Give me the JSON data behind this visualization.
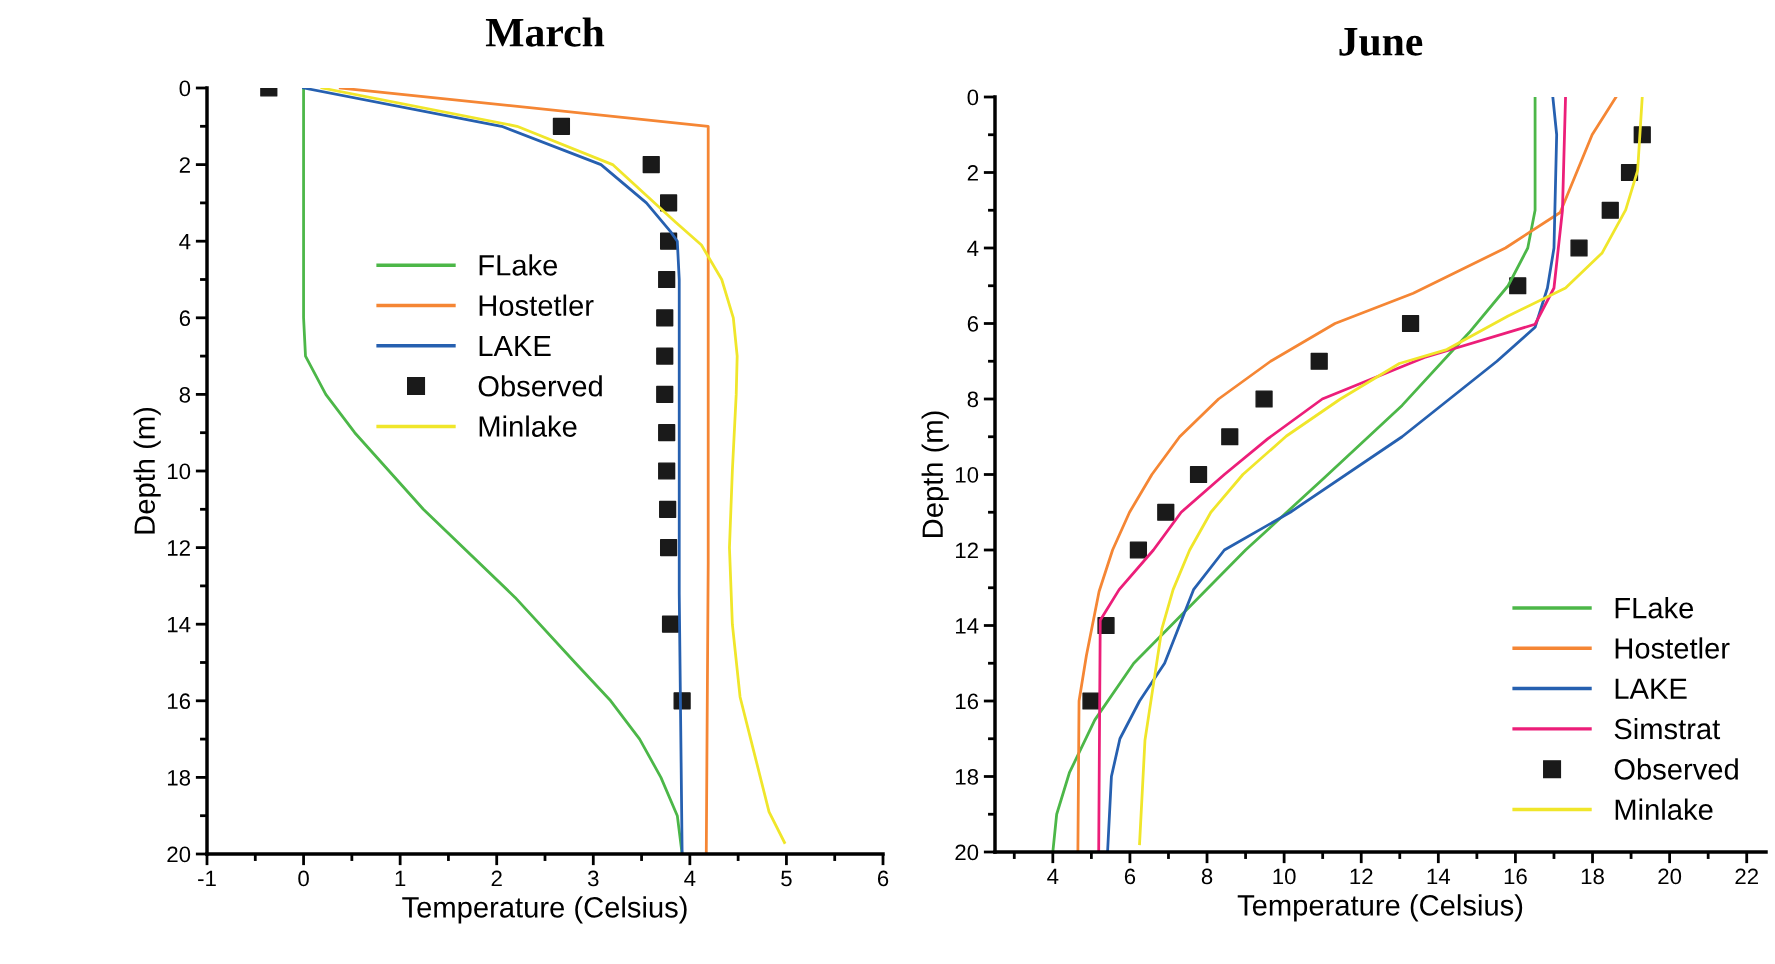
{
  "chart_data": [
    {
      "type": "line",
      "title": "March",
      "xlabel": "Temperature (Celsius)",
      "ylabel": "Depth (m)",
      "xlim": [
        -1,
        6
      ],
      "ylim": [
        20,
        0
      ],
      "xticks": [
        -1,
        {
          "value": -0.5,
          "label": null
        },
        0,
        {
          "value": 0.5,
          "label": null
        },
        1,
        {
          "value": 1.5,
          "label": null
        },
        2,
        {
          "value": 2.5,
          "label": null
        },
        3,
        {
          "value": 3.5,
          "label": null
        },
        4,
        {
          "value": 4.5,
          "label": null
        },
        5,
        {
          "value": 5.5,
          "label": null
        },
        6
      ],
      "yticks": [
        0,
        {
          "value": 1,
          "label": null
        },
        2,
        {
          "value": 3,
          "label": null
        },
        4,
        {
          "value": 5,
          "label": null
        },
        6,
        {
          "value": 7,
          "label": null
        },
        8,
        {
          "value": 9,
          "label": null
        },
        10,
        {
          "value": 11,
          "label": null
        },
        12,
        {
          "value": 13,
          "label": null
        },
        14,
        {
          "value": 15,
          "label": null
        },
        16,
        {
          "value": 17,
          "label": null
        },
        18,
        {
          "value": 19,
          "label": null
        },
        20
      ],
      "grid": false,
      "legend": "center",
      "series": [
        {
          "name": "FLake",
          "color": "#4cb748",
          "x": [
            0,
            0,
            0.02,
            0.23,
            0.53,
            1.24,
            2.19,
            2.81,
            3.18,
            3.48,
            3.7,
            3.87,
            3.92
          ],
          "values": [
            0,
            6,
            7,
            8,
            9,
            11,
            13.3,
            15,
            16,
            17,
            18,
            19,
            20
          ]
        },
        {
          "name": "Hostetler",
          "color": "#f58634",
          "x": [
            0.38,
            4.19,
            4.19,
            4.17
          ],
          "values": [
            0,
            1,
            12.4,
            20
          ]
        },
        {
          "name": "LAKE",
          "color": "#2660b0",
          "x": [
            0,
            2.05,
            3.08,
            3.55,
            3.8,
            3.87,
            3.89,
            3.89,
            3.92
          ],
          "values": [
            0,
            1,
            2,
            3,
            3.75,
            4,
            5,
            13.2,
            20
          ]
        },
        {
          "name": "Observed",
          "type": "scatter",
          "marker": "square",
          "color": "#1a1a1a",
          "x": [
            -0.36,
            2.67,
            3.6,
            3.78,
            3.78,
            3.76,
            3.74,
            3.74,
            3.74,
            3.76,
            3.76,
            3.77,
            3.78,
            3.8,
            3.92
          ],
          "values": [
            0,
            1,
            2,
            3,
            4,
            5,
            6,
            7,
            8,
            9,
            10,
            11,
            12,
            14,
            16
          ]
        },
        {
          "name": "Minlake",
          "color": "#f0e62a",
          "x": [
            0.19,
            2.21,
            3.2,
            3.85,
            4.12,
            4.33,
            4.45,
            4.49,
            4.48,
            4.44,
            4.41,
            4.44,
            4.52,
            4.66,
            4.82,
            4.98
          ],
          "values": [
            0,
            1,
            2,
            3.5,
            4.1,
            5,
            6,
            7,
            8,
            10,
            12,
            14,
            15.9,
            17.3,
            18.9,
            19.7
          ]
        }
      ]
    },
    {
      "type": "line",
      "title": "June",
      "xlabel": "Temperature (Celsius)",
      "ylabel": "Depth (m)",
      "xlim": [
        2.5,
        22.5
      ],
      "ylim": [
        20,
        0
      ],
      "xticks": [
        {
          "value": 3,
          "label": null
        },
        4,
        {
          "value": 5,
          "label": null
        },
        6,
        {
          "value": 7,
          "label": null
        },
        8,
        {
          "value": 9,
          "label": null
        },
        10,
        {
          "value": 11,
          "label": null
        },
        12,
        {
          "value": 13,
          "label": null
        },
        14,
        {
          "value": 15,
          "label": null
        },
        16,
        {
          "value": 17,
          "label": null
        },
        18,
        {
          "value": 19,
          "label": null
        },
        20,
        {
          "value": 21,
          "label": null
        },
        22
      ],
      "yticks": [
        0,
        {
          "value": 1,
          "label": null
        },
        2,
        {
          "value": 3,
          "label": null
        },
        4,
        {
          "value": 5,
          "label": null
        },
        6,
        {
          "value": 7,
          "label": null
        },
        8,
        {
          "value": 9,
          "label": null
        },
        10,
        {
          "value": 11,
          "label": null
        },
        12,
        {
          "value": 13,
          "label": null
        },
        14,
        {
          "value": 15,
          "label": null
        },
        16,
        {
          "value": 17,
          "label": null
        },
        18,
        {
          "value": 19,
          "label": null
        },
        20
      ],
      "grid": false,
      "legend": "lower right",
      "series": [
        {
          "name": "FLake",
          "color": "#4cb748",
          "x": [
            16.51,
            16.51,
            16.32,
            15.81,
            14.8,
            13.06,
            11.03,
            9.0,
            7.26,
            6.1,
            5.09,
            4.43,
            4.1,
            4.0
          ],
          "values": [
            0,
            3,
            4,
            5,
            6.24,
            8.17,
            10.1,
            12,
            13.8,
            15,
            16.5,
            17.9,
            19,
            20
          ]
        },
        {
          "name": "Hostetler",
          "color": "#f58634",
          "x": [
            18.61,
            17.99,
            17.16,
            15.74,
            13.35,
            11.32,
            9.65,
            8.3,
            7.29,
            6.57,
            5.99,
            5.55,
            5.2,
            4.87,
            4.68,
            4.65
          ],
          "values": [
            0,
            1,
            3.06,
            4,
            5.2,
            6,
            7,
            8,
            9,
            10,
            11,
            12,
            13.1,
            14.8,
            16,
            20
          ]
        },
        {
          "name": "LAKE",
          "color": "#2660b0",
          "x": [
            16.97,
            17.07,
            17.0,
            16.83,
            16.51,
            15.52,
            13.06,
            10.16,
            8.45,
            7.65,
            6.9,
            6.25,
            5.74,
            5.52,
            5.42
          ],
          "values": [
            0,
            1,
            4,
            5.06,
            6.1,
            7,
            9,
            11,
            12,
            13.05,
            15,
            16,
            17,
            18,
            20
          ]
        },
        {
          "name": "Simstrat",
          "color": "#ec1e79",
          "x": [
            17.3,
            17.22,
            17.0,
            16.51,
            13.64,
            10.99,
            9.58,
            8.45,
            7.33,
            6.61,
            5.72,
            5.23,
            5.19
          ],
          "values": [
            0,
            3,
            5.06,
            6.02,
            6.9,
            8,
            9.05,
            10,
            11,
            12,
            13.05,
            13.86,
            20
          ]
        },
        {
          "name": "Observed",
          "type": "scatter",
          "marker": "square",
          "color": "#1a1a1a",
          "x": [
            19.29,
            18.96,
            18.46,
            17.65,
            16.06,
            13.28,
            10.91,
            9.48,
            8.59,
            7.78,
            6.93,
            6.22,
            5.38,
            4.99
          ],
          "values": [
            1,
            2,
            3,
            4,
            5,
            6,
            7,
            8,
            9,
            10,
            11,
            12,
            14,
            16
          ]
        },
        {
          "name": "Minlake",
          "color": "#f0e62a",
          "x": [
            19.29,
            19.17,
            18.86,
            18.25,
            17.3,
            15.81,
            14.22,
            12.99,
            11.46,
            10.06,
            8.93,
            8.1,
            7.55,
            7.12,
            6.83,
            6.61,
            6.39,
            6.25
          ],
          "values": [
            0,
            1.95,
            2.99,
            4.13,
            5.06,
            5.8,
            6.69,
            7.06,
            8,
            8.98,
            10,
            11,
            12,
            13.05,
            14.08,
            15.56,
            17.04,
            19.78
          ]
        }
      ]
    }
  ]
}
